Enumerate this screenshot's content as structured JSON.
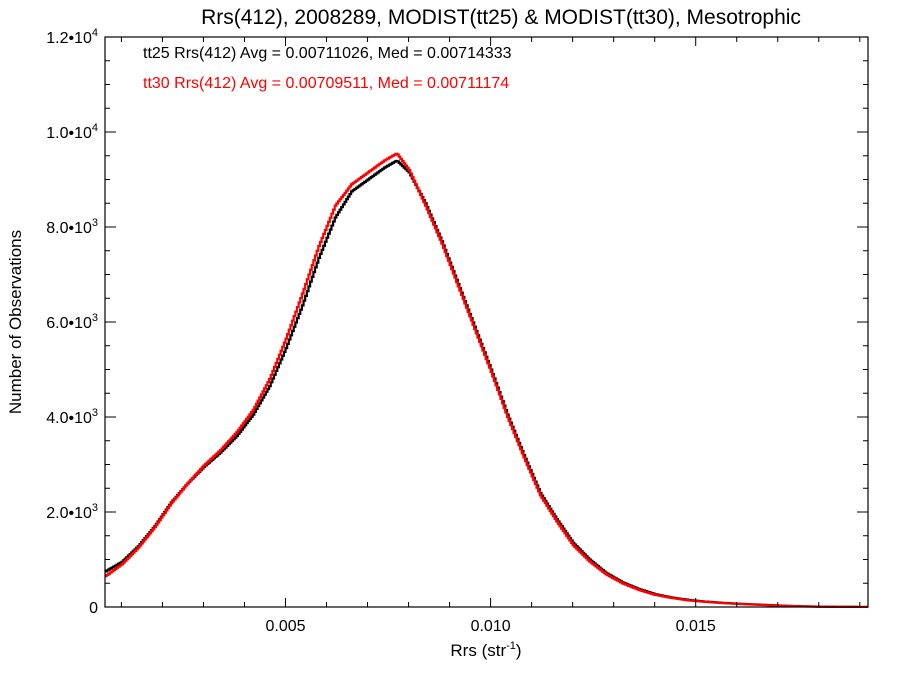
{
  "chart_data": {
    "type": "line",
    "step": true,
    "title": "Rrs(412), 2008289, MODIST(tt25) & MODIST(tt30), Mesotrophic",
    "xlabel": {
      "base": "Rrs (str",
      "sup": "-1",
      "tail": ")"
    },
    "ylabel": "Number of Observations",
    "xlim": [
      0.0006,
      0.0192
    ],
    "ylim": [
      0,
      12000
    ],
    "x_ticks": [
      {
        "value": 0.005,
        "label": "0.005"
      },
      {
        "value": 0.01,
        "label": "0.010"
      },
      {
        "value": 0.015,
        "label": "0.015"
      }
    ],
    "y_ticks": [
      {
        "value": 0,
        "base": "0",
        "sup": ""
      },
      {
        "value": 2000,
        "base": "2.0•10",
        "sup": "3"
      },
      {
        "value": 4000,
        "base": "4.0•10",
        "sup": "3"
      },
      {
        "value": 6000,
        "base": "6.0•10",
        "sup": "3"
      },
      {
        "value": 8000,
        "base": "8.0•10",
        "sup": "3"
      },
      {
        "value": 10000,
        "base": "1.0•10",
        "sup": "4"
      },
      {
        "value": 12000,
        "base": "1.2•10",
        "sup": "4"
      }
    ],
    "x_minor_step": 0.001,
    "y_minor_step": 500,
    "grid": false,
    "legend_position": "top-left",
    "series": [
      {
        "color": "#000000",
        "legend": "tt25 Rrs(412) Avg = 0.00711026, Med = 0.00714333",
        "points": [
          [
            0.0006,
            750
          ],
          [
            0.001,
            950
          ],
          [
            0.0014,
            1280
          ],
          [
            0.0018,
            1700
          ],
          [
            0.0022,
            2200
          ],
          [
            0.0026,
            2600
          ],
          [
            0.003,
            2950
          ],
          [
            0.0034,
            3250
          ],
          [
            0.0038,
            3600
          ],
          [
            0.0042,
            4050
          ],
          [
            0.0046,
            4650
          ],
          [
            0.005,
            5450
          ],
          [
            0.0054,
            6350
          ],
          [
            0.0058,
            7350
          ],
          [
            0.0062,
            8200
          ],
          [
            0.0066,
            8750
          ],
          [
            0.007,
            9000
          ],
          [
            0.0074,
            9250
          ],
          [
            0.0077,
            9400
          ],
          [
            0.008,
            9150
          ],
          [
            0.0084,
            8500
          ],
          [
            0.0088,
            7700
          ],
          [
            0.0092,
            6800
          ],
          [
            0.0096,
            5900
          ],
          [
            0.01,
            5000
          ],
          [
            0.0104,
            4050
          ],
          [
            0.0108,
            3200
          ],
          [
            0.0112,
            2400
          ],
          [
            0.0116,
            1850
          ],
          [
            0.012,
            1350
          ],
          [
            0.0124,
            1000
          ],
          [
            0.0128,
            720
          ],
          [
            0.0132,
            520
          ],
          [
            0.0136,
            380
          ],
          [
            0.014,
            270
          ],
          [
            0.0144,
            200
          ],
          [
            0.0148,
            150
          ],
          [
            0.0152,
            115
          ],
          [
            0.0156,
            90
          ],
          [
            0.016,
            70
          ],
          [
            0.0164,
            55
          ],
          [
            0.0168,
            40
          ],
          [
            0.0172,
            25
          ],
          [
            0.0176,
            15
          ],
          [
            0.018,
            8
          ],
          [
            0.0184,
            4
          ],
          [
            0.0188,
            2
          ],
          [
            0.0192,
            1
          ]
        ]
      },
      {
        "color": "#ff0000",
        "legend": "tt30 Rrs(412) Avg = 0.00709511, Med = 0.00711174",
        "points": [
          [
            0.0006,
            650
          ],
          [
            0.001,
            900
          ],
          [
            0.0014,
            1250
          ],
          [
            0.0018,
            1680
          ],
          [
            0.0022,
            2180
          ],
          [
            0.0026,
            2600
          ],
          [
            0.003,
            2980
          ],
          [
            0.0034,
            3300
          ],
          [
            0.0038,
            3680
          ],
          [
            0.0042,
            4150
          ],
          [
            0.0046,
            4800
          ],
          [
            0.005,
            5650
          ],
          [
            0.0054,
            6600
          ],
          [
            0.0058,
            7600
          ],
          [
            0.0062,
            8450
          ],
          [
            0.0066,
            8900
          ],
          [
            0.007,
            9150
          ],
          [
            0.0074,
            9400
          ],
          [
            0.0077,
            9550
          ],
          [
            0.008,
            9200
          ],
          [
            0.0084,
            8450
          ],
          [
            0.0088,
            7650
          ],
          [
            0.0092,
            6750
          ],
          [
            0.0096,
            5850
          ],
          [
            0.01,
            4950
          ],
          [
            0.0104,
            4000
          ],
          [
            0.0108,
            3150
          ],
          [
            0.0112,
            2350
          ],
          [
            0.0116,
            1800
          ],
          [
            0.012,
            1300
          ],
          [
            0.0124,
            960
          ],
          [
            0.0128,
            690
          ],
          [
            0.0132,
            500
          ],
          [
            0.0136,
            360
          ],
          [
            0.014,
            255
          ],
          [
            0.0144,
            190
          ],
          [
            0.0148,
            140
          ],
          [
            0.0152,
            110
          ],
          [
            0.0156,
            85
          ],
          [
            0.016,
            65
          ],
          [
            0.0164,
            50
          ],
          [
            0.0168,
            36
          ],
          [
            0.0172,
            22
          ],
          [
            0.0176,
            13
          ],
          [
            0.018,
            7
          ],
          [
            0.0184,
            3
          ],
          [
            0.0188,
            2
          ],
          [
            0.0192,
            1
          ]
        ]
      }
    ]
  }
}
